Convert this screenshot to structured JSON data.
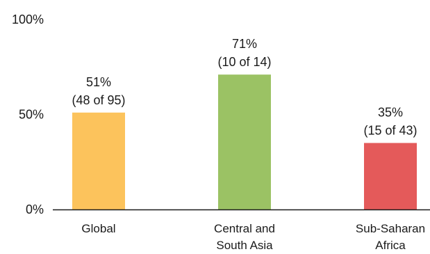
{
  "chart_data": {
    "type": "bar",
    "title": "",
    "xlabel": "",
    "ylabel": "",
    "ylim": [
      0,
      100
    ],
    "yticks": [
      {
        "value": 0,
        "label": "0%"
      },
      {
        "value": 50,
        "label": "50%"
      },
      {
        "value": 100,
        "label": "100%"
      }
    ],
    "grid": false,
    "bars": [
      {
        "category_lines": [
          "Global"
        ],
        "value": 51,
        "label_lines": [
          "51%",
          "(48 of 95)"
        ],
        "color": "#FCC35C"
      },
      {
        "category_lines": [
          "Central and",
          "South Asia"
        ],
        "value": 71,
        "label_lines": [
          "71%",
          "(10 of 14)"
        ],
        "color": "#9BC264"
      },
      {
        "category_lines": [
          "Sub-Saharan",
          "Africa"
        ],
        "value": 35,
        "label_lines": [
          "35%",
          "(15 of 43)"
        ],
        "color": "#E45A5A"
      }
    ],
    "axis_color": "#1a1a1a"
  }
}
